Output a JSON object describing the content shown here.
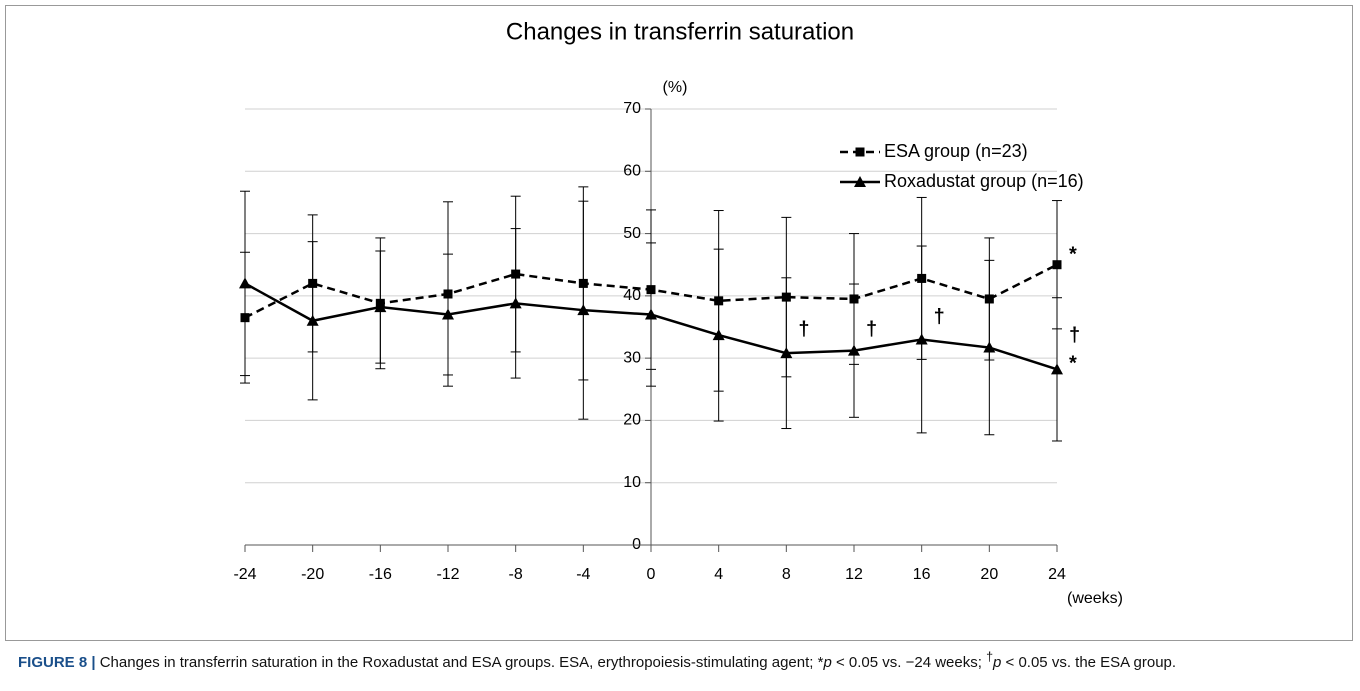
{
  "chart_data": {
    "type": "line",
    "title": "Changes in transferrin saturation",
    "y_label": "(%)",
    "x_label": "(weeks)",
    "x": [
      -24,
      -20,
      -16,
      -12,
      -8,
      -4,
      0,
      4,
      8,
      12,
      16,
      20,
      24
    ],
    "xlim": [
      -24,
      24
    ],
    "xticks": [
      -24,
      -20,
      -16,
      -12,
      -8,
      -4,
      0,
      4,
      8,
      12,
      16,
      20,
      24
    ],
    "ylim": [
      0,
      70
    ],
    "yticks": [
      0,
      10,
      20,
      30,
      40,
      50,
      60,
      70
    ],
    "grid": true,
    "legend": "upper right",
    "series": [
      {
        "name": "ESA group (n=23)",
        "color": "#000000",
        "dash": "dashed",
        "marker": "square",
        "values": [
          36.5,
          42,
          38.8,
          40.3,
          43.5,
          42,
          41,
          39.2,
          39.8,
          39.5,
          42.8,
          39.5,
          45
        ],
        "errors": [
          10.5,
          11,
          10.5,
          14.8,
          12.5,
          15.5,
          12.8,
          14.5,
          12.8,
          10.5,
          13,
          9.8,
          10.3
        ]
      },
      {
        "name": "Roxadustat group (n=16)",
        "color": "#000000",
        "dash": "solid",
        "marker": "triangle",
        "values": [
          42,
          36,
          38.2,
          37,
          38.8,
          37.7,
          37,
          33.7,
          30.8,
          31.2,
          33,
          31.7,
          28.2
        ],
        "errors": [
          14.8,
          12.7,
          9,
          9.7,
          12,
          17.5,
          11.5,
          13.8,
          12.1,
          10.7,
          15,
          14,
          11.5
        ]
      }
    ],
    "annotations": [
      {
        "text": "*",
        "x": 24,
        "y": 46.5
      },
      {
        "text": "†",
        "x": 24,
        "y": 33.5
      },
      {
        "text": "*",
        "x": 24,
        "y": 29
      },
      {
        "text": "†",
        "x": 8,
        "y": 34.5
      },
      {
        "text": "†",
        "x": 12,
        "y": 34.5
      },
      {
        "text": "†",
        "x": 16,
        "y": 36.5
      }
    ]
  },
  "caption": [
    "FIGURE 8 |",
    " Changes in transferrin saturation in the Roxadustat and ESA groups. ESA, erythropoiesis-stimulating agent; *",
    "p",
    " < 0.05 vs. −24 weeks; ",
    "†",
    "p",
    " < 0.05 vs. the ESA group."
  ]
}
